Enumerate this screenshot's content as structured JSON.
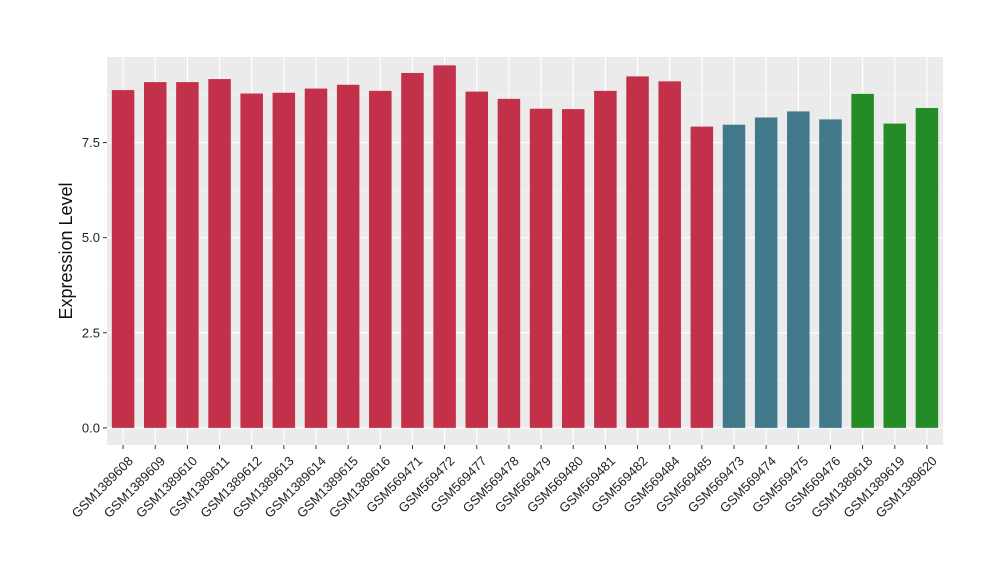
{
  "chart_data": {
    "type": "bar",
    "title": "",
    "xlabel": "",
    "ylabel": "Expression Level",
    "ylim": [
      -0.45,
      9.75
    ],
    "yticks": [
      0.0,
      2.5,
      5.0,
      7.5
    ],
    "ytick_labels": [
      "0.0",
      "2.5",
      "5.0",
      "7.5"
    ],
    "grid": true,
    "legend": "none",
    "background": "#ebebeb",
    "categories": [
      "GSM1389608",
      "GSM1389609",
      "GSM1389610",
      "GSM1389611",
      "GSM1389612",
      "GSM1389613",
      "GSM1389614",
      "GSM1389615",
      "GSM1389616",
      "GSM569471",
      "GSM569472",
      "GSM569477",
      "GSM569478",
      "GSM569479",
      "GSM569480",
      "GSM569481",
      "GSM569482",
      "GSM569484",
      "GSM569485",
      "GSM569473",
      "GSM569474",
      "GSM569475",
      "GSM569476",
      "GSM1389618",
      "GSM1389619",
      "GSM1389620"
    ],
    "values": [
      8.88,
      9.09,
      9.09,
      9.17,
      8.79,
      8.81,
      8.92,
      9.02,
      8.86,
      9.33,
      9.53,
      8.84,
      8.65,
      8.39,
      8.38,
      8.86,
      9.24,
      9.11,
      7.92,
      7.97,
      8.16,
      8.32,
      8.11,
      8.78,
      8.0,
      8.41
    ],
    "bar_colors": [
      "#c3304a",
      "#c3304a",
      "#c3304a",
      "#c3304a",
      "#c3304a",
      "#c3304a",
      "#c3304a",
      "#c3304a",
      "#c3304a",
      "#c3304a",
      "#c3304a",
      "#c3304a",
      "#c3304a",
      "#c3304a",
      "#c3304a",
      "#c3304a",
      "#c3304a",
      "#c3304a",
      "#c3304a",
      "#41798a",
      "#41798a",
      "#41798a",
      "#41798a",
      "#238c27",
      "#238c27",
      "#238c27"
    ]
  }
}
